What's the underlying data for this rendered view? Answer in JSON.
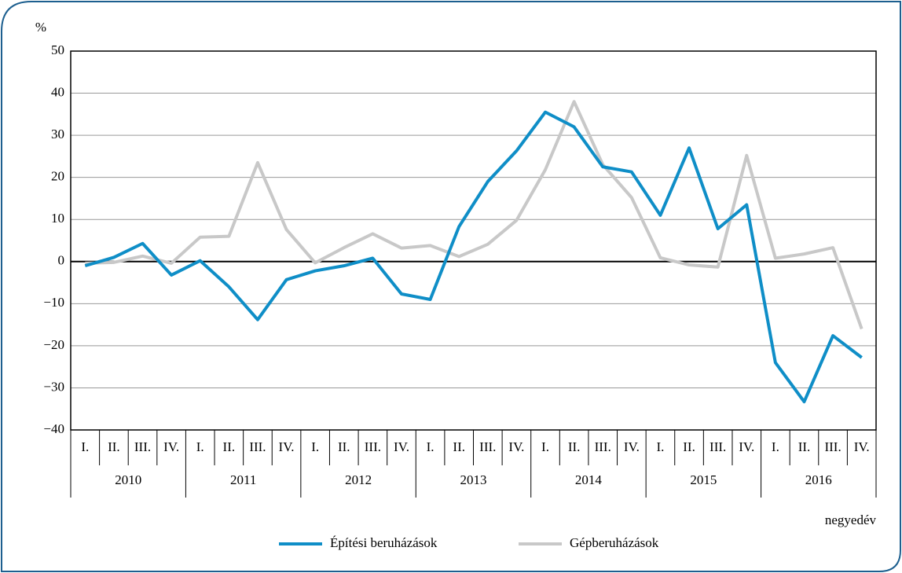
{
  "chart_data": {
    "type": "line",
    "y_label": "%",
    "x_label": "negyedév",
    "categories": [
      "I.",
      "II.",
      "III.",
      "IV.",
      "I.",
      "II.",
      "III.",
      "IV.",
      "I.",
      "II.",
      "III.",
      "IV.",
      "I.",
      "II.",
      "III.",
      "IV.",
      "I.",
      "II.",
      "III.",
      "IV.",
      "I.",
      "II.",
      "III.",
      "IV.",
      "I.",
      "II.",
      "III.",
      "IV."
    ],
    "years": [
      "2010",
      "2011",
      "2012",
      "2013",
      "2014",
      "2015",
      "2016"
    ],
    "series": [
      {
        "name": "Építési beruházások",
        "color": "#0f8ec7",
        "values": [
          -1,
          1,
          4.3,
          -3.2,
          0.2,
          -6,
          -13.8,
          -4.3,
          -2.2,
          -1,
          0.8,
          -7.7,
          -9,
          8.3,
          19,
          26.3,
          35.5,
          32,
          22.5,
          21.3,
          11,
          27,
          7.8,
          13.5,
          -24,
          -33.3,
          -17.6,
          -22.8
        ]
      },
      {
        "name": "Gépberuházások",
        "color": "#c8c8c8",
        "values": [
          -0.4,
          -0.2,
          1.3,
          -0.4,
          5.8,
          6,
          23.5,
          7.6,
          -0.3,
          3.3,
          6.6,
          3.2,
          3.8,
          1.2,
          4.1,
          9.8,
          21.8,
          38,
          23,
          15.2,
          0.9,
          -0.8,
          -1.3,
          25.2,
          0.8,
          1.8,
          3.3,
          -16
        ]
      }
    ],
    "ylim": [
      -40,
      50
    ],
    "yticks": [
      {
        "value": -40,
        "label": "−40"
      },
      {
        "value": -30,
        "label": "−30"
      },
      {
        "value": -20,
        "label": "−20"
      },
      {
        "value": -10,
        "label": "−10"
      },
      0,
      10,
      20,
      30,
      40,
      50
    ],
    "grid": true,
    "legend": "bottom"
  }
}
